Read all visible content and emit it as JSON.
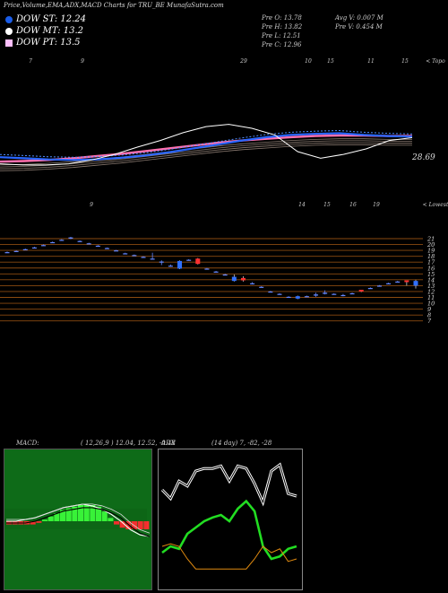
{
  "title": "Price,Volume,EMA,ADX,MACD Charts for TRU_BE MunafaSutra.com",
  "dow": [
    {
      "label": "DOW ST: 12.24",
      "color": "#1a5de8",
      "shape": "dot"
    },
    {
      "label": "DOW MT: 13.2",
      "color": "#ffffff",
      "shape": "dot"
    },
    {
      "label": "DOW PT: 13.5",
      "color": "#ffc0ff",
      "shape": "square"
    }
  ],
  "info": {
    "open": "Pre   O: 13.78",
    "high": "Pre   H: 13.82",
    "low": "Pre   L: 12.51",
    "close": "Pre   C: 12.96",
    "avg_volume": "Avg V: 0.007 M",
    "prev_volume": "Pre   V: 0.454   M"
  },
  "top_axis_labels": [
    "7",
    "9",
    "29",
    "10",
    "15",
    "11",
    "15",
    "< Topo"
  ],
  "bottom_axis_labels": [
    "9",
    "14",
    "15",
    "16",
    "19",
    "< Lowest"
  ],
  "last_price_label": "28.69",
  "macd_label": "MACD:",
  "macd_values": "( 12,26,9 ) 12.04,  12.52,  -0.48",
  "adx_label": "ADX",
  "adx_values": "(14  day) 7,  -82,  -28",
  "chart_data": {
    "type": "candlestick",
    "price_levels": [
      21,
      20,
      19,
      18,
      17,
      16,
      15,
      14,
      13,
      12,
      11,
      10,
      9,
      8,
      7
    ],
    "ylim": [
      7,
      21.5
    ],
    "candles": [
      {
        "o": 18.7,
        "h": 18.8,
        "l": 18.6,
        "c": 18.7
      },
      {
        "o": 18.9,
        "h": 19.0,
        "l": 18.8,
        "c": 18.9
      },
      {
        "o": 19.2,
        "h": 19.3,
        "l": 19.1,
        "c": 19.2
      },
      {
        "o": 19.5,
        "h": 19.6,
        "l": 19.4,
        "c": 19.5
      },
      {
        "o": 19.9,
        "h": 20.0,
        "l": 19.8,
        "c": 19.9
      },
      {
        "o": 20.4,
        "h": 20.5,
        "l": 20.3,
        "c": 20.4
      },
      {
        "o": 20.8,
        "h": 20.9,
        "l": 20.7,
        "c": 20.8
      },
      {
        "o": 21.0,
        "h": 21.3,
        "l": 20.9,
        "c": 21.2
      },
      {
        "o": 20.6,
        "h": 20.7,
        "l": 20.5,
        "c": 20.6
      },
      {
        "o": 20.2,
        "h": 20.3,
        "l": 20.1,
        "c": 20.2
      },
      {
        "o": 19.8,
        "h": 19.9,
        "l": 19.7,
        "c": 19.8
      },
      {
        "o": 19.4,
        "h": 19.5,
        "l": 19.3,
        "c": 19.4
      },
      {
        "o": 19.0,
        "h": 19.1,
        "l": 18.9,
        "c": 19.0
      },
      {
        "o": 18.5,
        "h": 18.6,
        "l": 18.4,
        "c": 18.5
      },
      {
        "o": 18.2,
        "h": 18.3,
        "l": 18.1,
        "c": 18.2
      },
      {
        "o": 17.9,
        "h": 18.0,
        "l": 17.8,
        "c": 17.9
      },
      {
        "o": 17.6,
        "h": 18.6,
        "l": 17.5,
        "c": 17.6
      },
      {
        "o": 17.0,
        "h": 17.3,
        "l": 16.5,
        "c": 17.1
      },
      {
        "o": 16.4,
        "h": 16.6,
        "l": 16.2,
        "c": 16.4
      },
      {
        "o": 17.2,
        "h": 17.3,
        "l": 15.8,
        "c": 15.9
      },
      {
        "o": 17.4,
        "h": 17.5,
        "l": 17.3,
        "c": 17.4
      },
      {
        "o": 16.7,
        "h": 17.7,
        "l": 16.6,
        "c": 17.6
      },
      {
        "o": 15.9,
        "h": 16.0,
        "l": 15.8,
        "c": 15.9
      },
      {
        "o": 15.4,
        "h": 15.5,
        "l": 15.3,
        "c": 15.4
      },
      {
        "o": 14.9,
        "h": 15.0,
        "l": 14.8,
        "c": 14.9
      },
      {
        "o": 14.5,
        "h": 14.9,
        "l": 13.7,
        "c": 13.8
      },
      {
        "o": 13.9,
        "h": 14.6,
        "l": 13.7,
        "c": 14.3
      },
      {
        "o": 13.4,
        "h": 13.6,
        "l": 13.2,
        "c": 13.4
      },
      {
        "o": 12.8,
        "h": 12.9,
        "l": 12.7,
        "c": 12.8
      },
      {
        "o": 12.0,
        "h": 12.1,
        "l": 11.9,
        "c": 12.0
      },
      {
        "o": 11.6,
        "h": 11.7,
        "l": 11.5,
        "c": 11.6
      },
      {
        "o": 11.1,
        "h": 11.2,
        "l": 11.0,
        "c": 11.1
      },
      {
        "o": 11.2,
        "h": 11.3,
        "l": 10.7,
        "c": 10.8
      },
      {
        "o": 11.2,
        "h": 11.3,
        "l": 11.1,
        "c": 11.2
      },
      {
        "o": 11.5,
        "h": 11.8,
        "l": 11.1,
        "c": 11.3
      },
      {
        "o": 11.8,
        "h": 12.2,
        "l": 11.5,
        "c": 11.6
      },
      {
        "o": 11.6,
        "h": 11.7,
        "l": 11.5,
        "c": 11.6
      },
      {
        "o": 11.4,
        "h": 11.6,
        "l": 11.2,
        "c": 11.3
      },
      {
        "o": 11.7,
        "h": 11.8,
        "l": 11.6,
        "c": 11.7
      },
      {
        "o": 12.0,
        "h": 12.3,
        "l": 11.9,
        "c": 12.3
      },
      {
        "o": 12.6,
        "h": 12.7,
        "l": 12.5,
        "c": 12.6
      },
      {
        "o": 13.0,
        "h": 13.1,
        "l": 12.9,
        "c": 13.0
      },
      {
        "o": 13.4,
        "h": 13.5,
        "l": 13.3,
        "c": 13.4
      },
      {
        "o": 13.7,
        "h": 13.8,
        "l": 13.6,
        "c": 13.7
      },
      {
        "o": 13.6,
        "h": 13.9,
        "l": 13.0,
        "c": 13.9
      },
      {
        "o": 13.8,
        "h": 14.0,
        "l": 12.5,
        "c": 13.0
      }
    ],
    "ema_short": [
      22.0,
      21.8,
      21.6,
      21.5,
      21.6,
      21.9,
      22.3,
      22.9,
      23.6,
      24.3,
      25.0,
      25.6,
      26.0,
      26.2,
      26.3,
      26.0,
      25.8,
      25.7
    ],
    "ema_long": [
      21.2,
      21.3,
      21.5,
      21.8,
      22.2,
      22.6,
      23.1,
      23.6,
      24.1,
      24.6,
      25.0,
      25.3,
      25.6,
      25.8,
      25.9,
      25.9,
      25.8,
      25.8
    ],
    "price_line": [
      20.8,
      20.6,
      20.6,
      20.8,
      21.5,
      22.5,
      23.8,
      25.0,
      26.4,
      27.5,
      27.9,
      27.2,
      26.0,
      23.0,
      21.8,
      22.5,
      23.5,
      25.0,
      25.5
    ],
    "macd_histogram": [
      -2,
      -2,
      -2,
      -2,
      -2,
      -1,
      1,
      3,
      5,
      7,
      8,
      9,
      10,
      10,
      10,
      9,
      6,
      2,
      -2,
      -4,
      -5,
      -5,
      -5,
      -5
    ],
    "macd_line": [
      0,
      0,
      1,
      2,
      4,
      6,
      8,
      9,
      10,
      9,
      7,
      4,
      0,
      -5,
      -8,
      -9
    ],
    "signal_line": [
      0,
      0,
      0,
      1,
      3,
      5,
      7,
      8,
      9,
      9,
      8,
      6,
      3,
      -2,
      -6,
      -8
    ],
    "adx_plus_di": [
      55,
      48,
      62,
      58,
      70,
      72,
      72,
      74,
      62,
      74,
      72,
      60,
      45,
      70,
      75,
      52,
      50
    ],
    "adx_minus_di": [
      25,
      30,
      28,
      40,
      45,
      50,
      53,
      55,
      50,
      60,
      66,
      58,
      30,
      20,
      22,
      28,
      30
    ],
    "adx_line": [
      30,
      32,
      30,
      20,
      12,
      12,
      12,
      12,
      12,
      12,
      12,
      20,
      30,
      25,
      28,
      18,
      20
    ]
  }
}
